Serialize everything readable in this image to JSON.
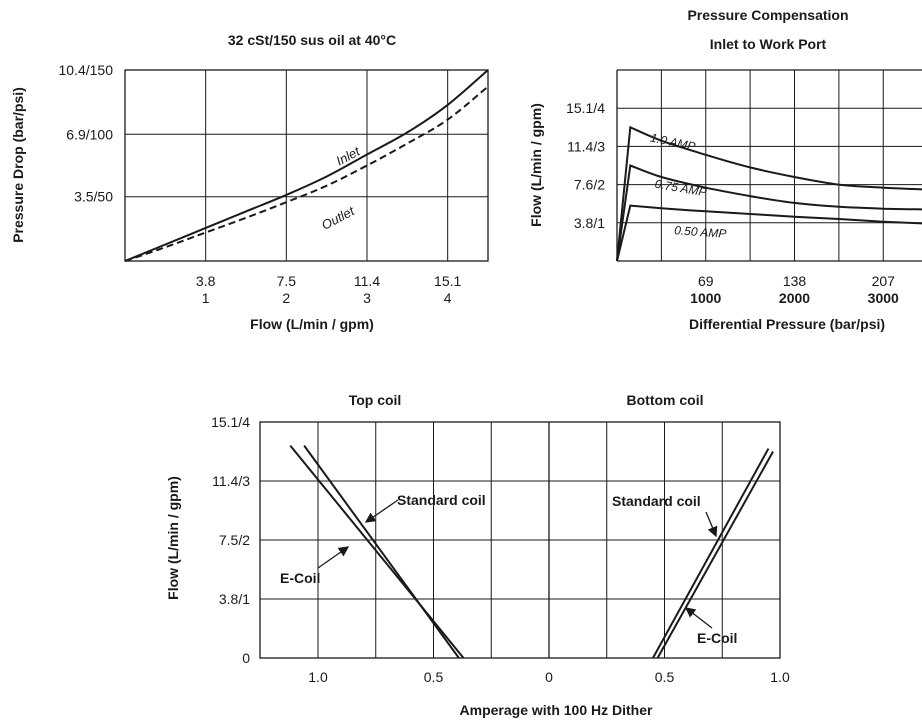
{
  "chart_data": [
    {
      "type": "line",
      "title": "32 cSt/150 sus oil at 40°C",
      "xlabel": "Flow (L/min / gpm)",
      "ylabel": "Pressure Drop (bar/psi)",
      "x_ticks": [
        [
          "3.8",
          "1"
        ],
        [
          "7.5",
          "2"
        ],
        [
          "11.4",
          "3"
        ],
        [
          "15.1",
          "4"
        ]
      ],
      "y_ticks": [
        "3.5/50",
        "6.9/100",
        "10.4/150"
      ],
      "xlim": [
        0,
        4.5
      ],
      "ylim": [
        0,
        10.4
      ],
      "grid": true,
      "series": [
        {
          "name": "Inlet",
          "style": "solid",
          "x": [
            0,
            0.5,
            1,
            1.5,
            2,
            2.5,
            3,
            3.5,
            4,
            4.5
          ],
          "y": [
            0,
            0.9,
            1.8,
            2.7,
            3.6,
            4.6,
            5.8,
            7.0,
            8.5,
            10.4
          ]
        },
        {
          "name": "Outlet",
          "style": "dashed",
          "x": [
            0,
            0.5,
            1,
            1.5,
            2,
            2.5,
            3,
            3.5,
            4,
            4.5
          ],
          "y": [
            0,
            0.75,
            1.55,
            2.35,
            3.2,
            4.1,
            5.2,
            6.4,
            7.7,
            9.5
          ]
        }
      ]
    },
    {
      "type": "line",
      "title": [
        "Pressure Compensation",
        "Inlet to Work Port"
      ],
      "xlabel": "Differential Pressure (bar/psi)",
      "ylabel": "Flow (L/min / gpm)",
      "x_ticks": [
        [
          "69",
          "1000"
        ],
        [
          "138",
          "2000"
        ],
        [
          "207",
          "3000"
        ]
      ],
      "y_ticks": [
        "3.8/1",
        "7.6/2",
        "11.4/3",
        "15.1/4"
      ],
      "xlim": [
        0,
        4000
      ],
      "ylim": [
        0,
        5
      ],
      "grid": true,
      "series": [
        {
          "name": "1.0 AMP",
          "x": [
            0,
            150,
            500,
            1000,
            1500,
            2000,
            2500,
            3000,
            3500,
            4000
          ],
          "y": [
            0,
            3.5,
            3.15,
            2.78,
            2.45,
            2.2,
            2.0,
            1.92,
            1.87,
            1.83
          ]
        },
        {
          "name": "0.75 AMP",
          "x": [
            0,
            150,
            500,
            1000,
            1500,
            2000,
            2500,
            3000,
            3500,
            4000
          ],
          "y": [
            0,
            2.5,
            2.2,
            1.92,
            1.7,
            1.52,
            1.42,
            1.37,
            1.35,
            1.33
          ]
        },
        {
          "name": "0.50 AMP",
          "x": [
            0,
            150,
            500,
            1000,
            1500,
            2000,
            2500,
            3000,
            3500,
            4000
          ],
          "y": [
            0,
            1.45,
            1.38,
            1.3,
            1.23,
            1.16,
            1.1,
            1.03,
            0.98,
            0.92
          ]
        }
      ]
    },
    {
      "type": "line",
      "title": [
        "Top coil",
        "Bottom coil"
      ],
      "xlabel": "Amperage with 100 Hz Dither",
      "ylabel": "Flow (L/min / gpm)",
      "x_ticks": [
        "1.0",
        "0.5",
        "0",
        "0.5",
        "1.0"
      ],
      "y_ticks": [
        "0",
        "3.8/1",
        "7.5/2",
        "11.4/3",
        "15.1/4"
      ],
      "ylim": [
        0,
        4
      ],
      "grid": true,
      "series": [
        {
          "name": "Standard coil",
          "side": "top",
          "current": [
            0.39,
            1.06
          ],
          "flow": [
            0,
            3.6
          ]
        },
        {
          "name": "E-Coil",
          "side": "top",
          "current": [
            0.37,
            1.12
          ],
          "flow": [
            0,
            3.6
          ]
        },
        {
          "name": "Standard coil",
          "side": "bottom",
          "current": [
            0.47,
            0.97
          ],
          "flow": [
            0,
            3.5
          ]
        },
        {
          "name": "E-Coil",
          "side": "bottom",
          "current": [
            0.45,
            0.95
          ],
          "flow": [
            0,
            3.55
          ]
        }
      ],
      "annotations": [
        "Standard coil",
        "E-Coil",
        "Standard coil",
        "E-Coil"
      ]
    }
  ]
}
